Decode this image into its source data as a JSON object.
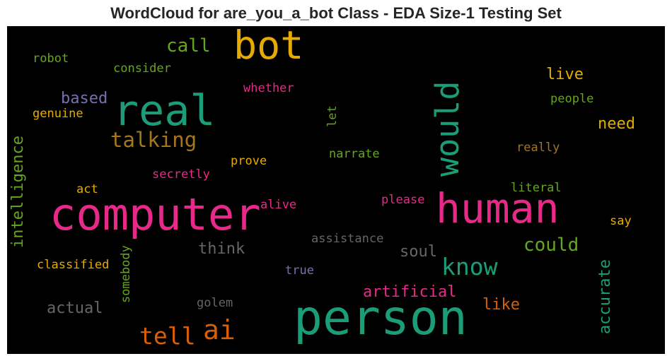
{
  "chart_data": {
    "type": "wordcloud",
    "title": "WordCloud for are_you_a_bot Class - EDA Size-1 Testing Set",
    "background": "#000000",
    "words": [
      {
        "text": "bot",
        "color": "#e6ab02",
        "orientation": "horizontal"
      },
      {
        "text": "call",
        "color": "#66a61e",
        "orientation": "horizontal"
      },
      {
        "text": "robot",
        "color": "#66a61e",
        "orientation": "horizontal"
      },
      {
        "text": "consider",
        "color": "#66a61e",
        "orientation": "horizontal"
      },
      {
        "text": "whether",
        "color": "#e7298a",
        "orientation": "horizontal"
      },
      {
        "text": "live",
        "color": "#e6ab02",
        "orientation": "horizontal"
      },
      {
        "text": "based",
        "color": "#7570b3",
        "orientation": "horizontal"
      },
      {
        "text": "real",
        "color": "#1b9e77",
        "orientation": "horizontal"
      },
      {
        "text": "would",
        "color": "#1b9e77",
        "orientation": "vertical"
      },
      {
        "text": "people",
        "color": "#66a61e",
        "orientation": "horizontal"
      },
      {
        "text": "genuine",
        "color": "#e6ab02",
        "orientation": "horizontal"
      },
      {
        "text": "let",
        "color": "#66a61e",
        "orientation": "vertical"
      },
      {
        "text": "need",
        "color": "#e6ab02",
        "orientation": "horizontal"
      },
      {
        "text": "talking",
        "color": "#a6761d",
        "orientation": "horizontal"
      },
      {
        "text": "intelligence",
        "color": "#66a61e",
        "orientation": "vertical"
      },
      {
        "text": "really",
        "color": "#a6761d",
        "orientation": "horizontal"
      },
      {
        "text": "narrate",
        "color": "#66a61e",
        "orientation": "horizontal"
      },
      {
        "text": "prove",
        "color": "#e6ab02",
        "orientation": "horizontal"
      },
      {
        "text": "secretly",
        "color": "#e7298a",
        "orientation": "horizontal"
      },
      {
        "text": "act",
        "color": "#e6ab02",
        "orientation": "horizontal"
      },
      {
        "text": "literal",
        "color": "#66a61e",
        "orientation": "horizontal"
      },
      {
        "text": "computer",
        "color": "#e7298a",
        "orientation": "horizontal"
      },
      {
        "text": "human",
        "color": "#e7298a",
        "orientation": "horizontal"
      },
      {
        "text": "alive",
        "color": "#e7298a",
        "orientation": "horizontal"
      },
      {
        "text": "please",
        "color": "#e7298a",
        "orientation": "horizontal"
      },
      {
        "text": "say",
        "color": "#e6ab02",
        "orientation": "horizontal"
      },
      {
        "text": "assistance",
        "color": "#666666",
        "orientation": "horizontal"
      },
      {
        "text": "could",
        "color": "#66a61e",
        "orientation": "horizontal"
      },
      {
        "text": "think",
        "color": "#666666",
        "orientation": "horizontal"
      },
      {
        "text": "soul",
        "color": "#666666",
        "orientation": "horizontal"
      },
      {
        "text": "know",
        "color": "#1b9e77",
        "orientation": "horizontal"
      },
      {
        "text": "somebody",
        "color": "#66a61e",
        "orientation": "vertical"
      },
      {
        "text": "classified",
        "color": "#e6ab02",
        "orientation": "horizontal"
      },
      {
        "text": "true",
        "color": "#7570b3",
        "orientation": "horizontal"
      },
      {
        "text": "accurate",
        "color": "#1b9e77",
        "orientation": "vertical"
      },
      {
        "text": "artificial",
        "color": "#e7298a",
        "orientation": "horizontal"
      },
      {
        "text": "like",
        "color": "#d95f02",
        "orientation": "horizontal"
      },
      {
        "text": "golem",
        "color": "#666666",
        "orientation": "horizontal"
      },
      {
        "text": "actual",
        "color": "#666666",
        "orientation": "horizontal"
      },
      {
        "text": "person",
        "color": "#1b9e77",
        "orientation": "horizontal"
      },
      {
        "text": "ai",
        "color": "#d95f02",
        "orientation": "horizontal"
      },
      {
        "text": "tell",
        "color": "#d95f02",
        "orientation": "horizontal"
      }
    ]
  }
}
